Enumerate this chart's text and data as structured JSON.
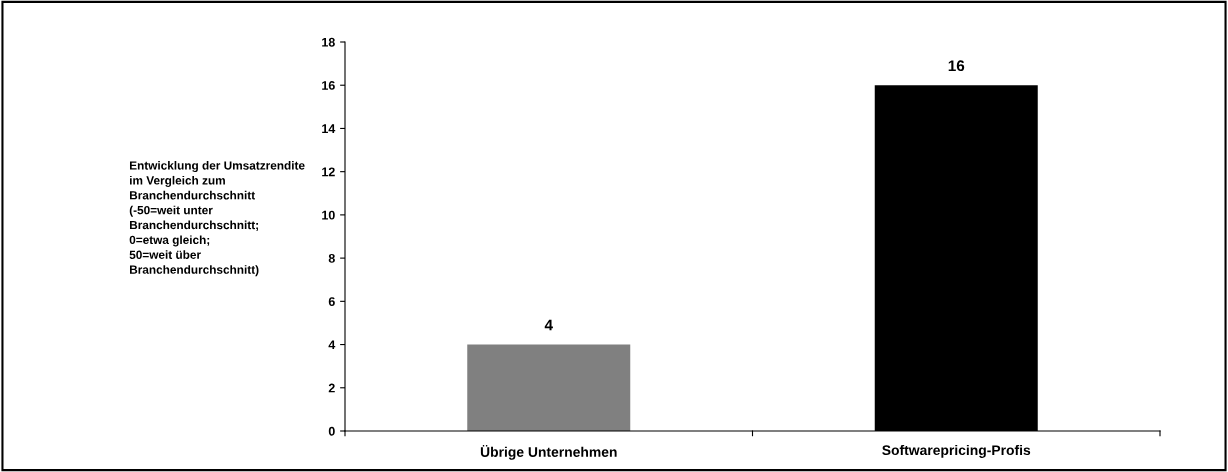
{
  "chart_data": {
    "type": "bar",
    "ylabel": "Entwicklung der Umsatzrendite\nim Vergleich zum\nBranchendurchschnitt\n(-50=weit unter\nBranchendurchschnitt;\n0=etwa gleich;\n50=weit über\nBranchendurchschnitt)",
    "categories": [
      "Übrige Unternehmen",
      "Softwarepricing-Profis"
    ],
    "values": [
      4,
      16
    ],
    "colors": [
      "#808080",
      "#000000"
    ],
    "ylim": [
      0,
      18
    ],
    "yticks": [
      0,
      2,
      4,
      6,
      8,
      10,
      12,
      14,
      16,
      18
    ],
    "data_labels": true,
    "grid": false,
    "legend": false
  }
}
